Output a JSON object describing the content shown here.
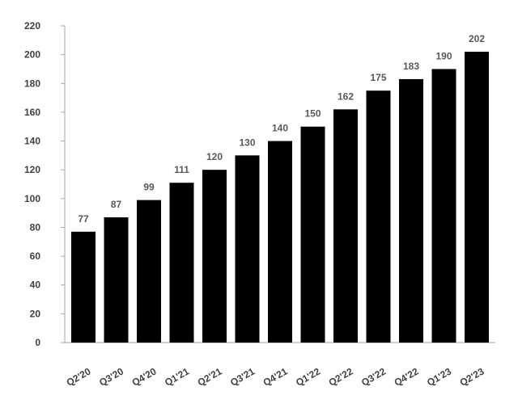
{
  "chart_data": {
    "type": "bar",
    "title": "",
    "xlabel": "",
    "ylabel": "",
    "categories": [
      "Q2'20",
      "Q3'20",
      "Q4'20",
      "Q1'21",
      "Q2'21",
      "Q3'21",
      "Q4'21",
      "Q1'22",
      "Q2'22",
      "Q3'22",
      "Q4'22",
      "Q1'23",
      "Q2'23"
    ],
    "values": [
      77,
      87,
      99,
      111,
      120,
      130,
      140,
      150,
      162,
      175,
      183,
      190,
      202
    ],
    "ylim": [
      0,
      220
    ],
    "yticks": [
      0,
      20,
      40,
      60,
      80,
      100,
      120,
      140,
      160,
      180,
      200,
      220
    ],
    "grid": false,
    "legend": "none",
    "data_labels": true,
    "x_tick_rotation_deg": -30,
    "colors": {
      "bar": "#000000",
      "axis": "#a6a6a6",
      "tick_label": "#404040",
      "data_label": "#595959"
    }
  }
}
